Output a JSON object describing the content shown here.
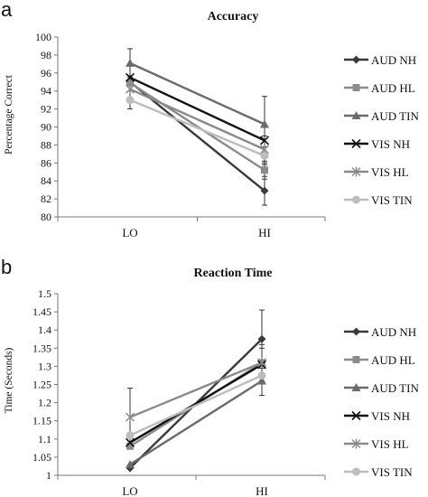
{
  "panels": [
    {
      "letter": "a",
      "chart_data": {
        "type": "line",
        "title": "Accuracy",
        "ylabel": "Percentage  Correct",
        "xlabel": "",
        "categories": [
          "LO",
          "HI"
        ],
        "ylim": [
          80,
          100
        ],
        "yticks": [
          80,
          82,
          84,
          86,
          88,
          90,
          92,
          94,
          96,
          98,
          100
        ],
        "grid": false,
        "legend": "right",
        "series": [
          {
            "name": "AUD NH",
            "values": [
              95.0,
              82.9
            ],
            "err": [
              0,
              1.6
            ],
            "marker": "diamond",
            "color": "#3a3a3a"
          },
          {
            "name": "AUD HL",
            "values": [
              94.9,
              85.2
            ],
            "err": [
              0,
              1.0
            ],
            "marker": "square",
            "color": "#8c8c8c"
          },
          {
            "name": "AUD TIN",
            "values": [
              97.1,
              90.3
            ],
            "err": [
              1.6,
              3.1
            ],
            "marker": "triangle",
            "color": "#6b6b6b"
          },
          {
            "name": "VIS NH",
            "values": [
              95.5,
              88.5
            ],
            "err": [
              0,
              0
            ],
            "marker": "x",
            "color": "#111111"
          },
          {
            "name": "VIS HL",
            "values": [
              94.2,
              87.5
            ],
            "err": [
              1.5,
              1.5
            ],
            "marker": "star",
            "color": "#8a8a8a"
          },
          {
            "name": "VIS TIN",
            "values": [
              93.0,
              86.8
            ],
            "err": [
              1.0,
              1.0
            ],
            "marker": "circle",
            "color": "#bdbdbd"
          }
        ]
      }
    },
    {
      "letter": "b",
      "chart_data": {
        "type": "line",
        "title": "Reaction Time",
        "ylabel": "Time  (Seconds)",
        "xlabel": "",
        "categories": [
          "LO",
          "HI"
        ],
        "ylim": [
          1,
          1.5
        ],
        "yticks": [
          1,
          1.05,
          1.1,
          1.15,
          1.2,
          1.25,
          1.3,
          1.35,
          1.4,
          1.45,
          1.5
        ],
        "grid": false,
        "legend": "right",
        "series": [
          {
            "name": "AUD NH",
            "values": [
              1.02,
              1.375
            ],
            "err": [
              0,
              0.08
            ],
            "marker": "diamond",
            "color": "#3a3a3a"
          },
          {
            "name": "AUD HL",
            "values": [
              1.08,
              1.31
            ],
            "err": [
              0,
              0.05
            ],
            "marker": "square",
            "color": "#8c8c8c"
          },
          {
            "name": "AUD TIN",
            "values": [
              1.03,
              1.26
            ],
            "err": [
              0,
              0.04
            ],
            "marker": "triangle",
            "color": "#6b6b6b"
          },
          {
            "name": "VIS NH",
            "values": [
              1.09,
              1.305
            ],
            "err": [
              0,
              0
            ],
            "marker": "x",
            "color": "#111111"
          },
          {
            "name": "VIS HL",
            "values": [
              1.16,
              1.31
            ],
            "err": [
              0.08,
              0.04
            ],
            "marker": "star",
            "color": "#8a8a8a"
          },
          {
            "name": "VIS TIN",
            "values": [
              1.11,
              1.275
            ],
            "err": [
              0,
              0
            ],
            "marker": "circle",
            "color": "#bdbdbd"
          }
        ]
      }
    }
  ]
}
